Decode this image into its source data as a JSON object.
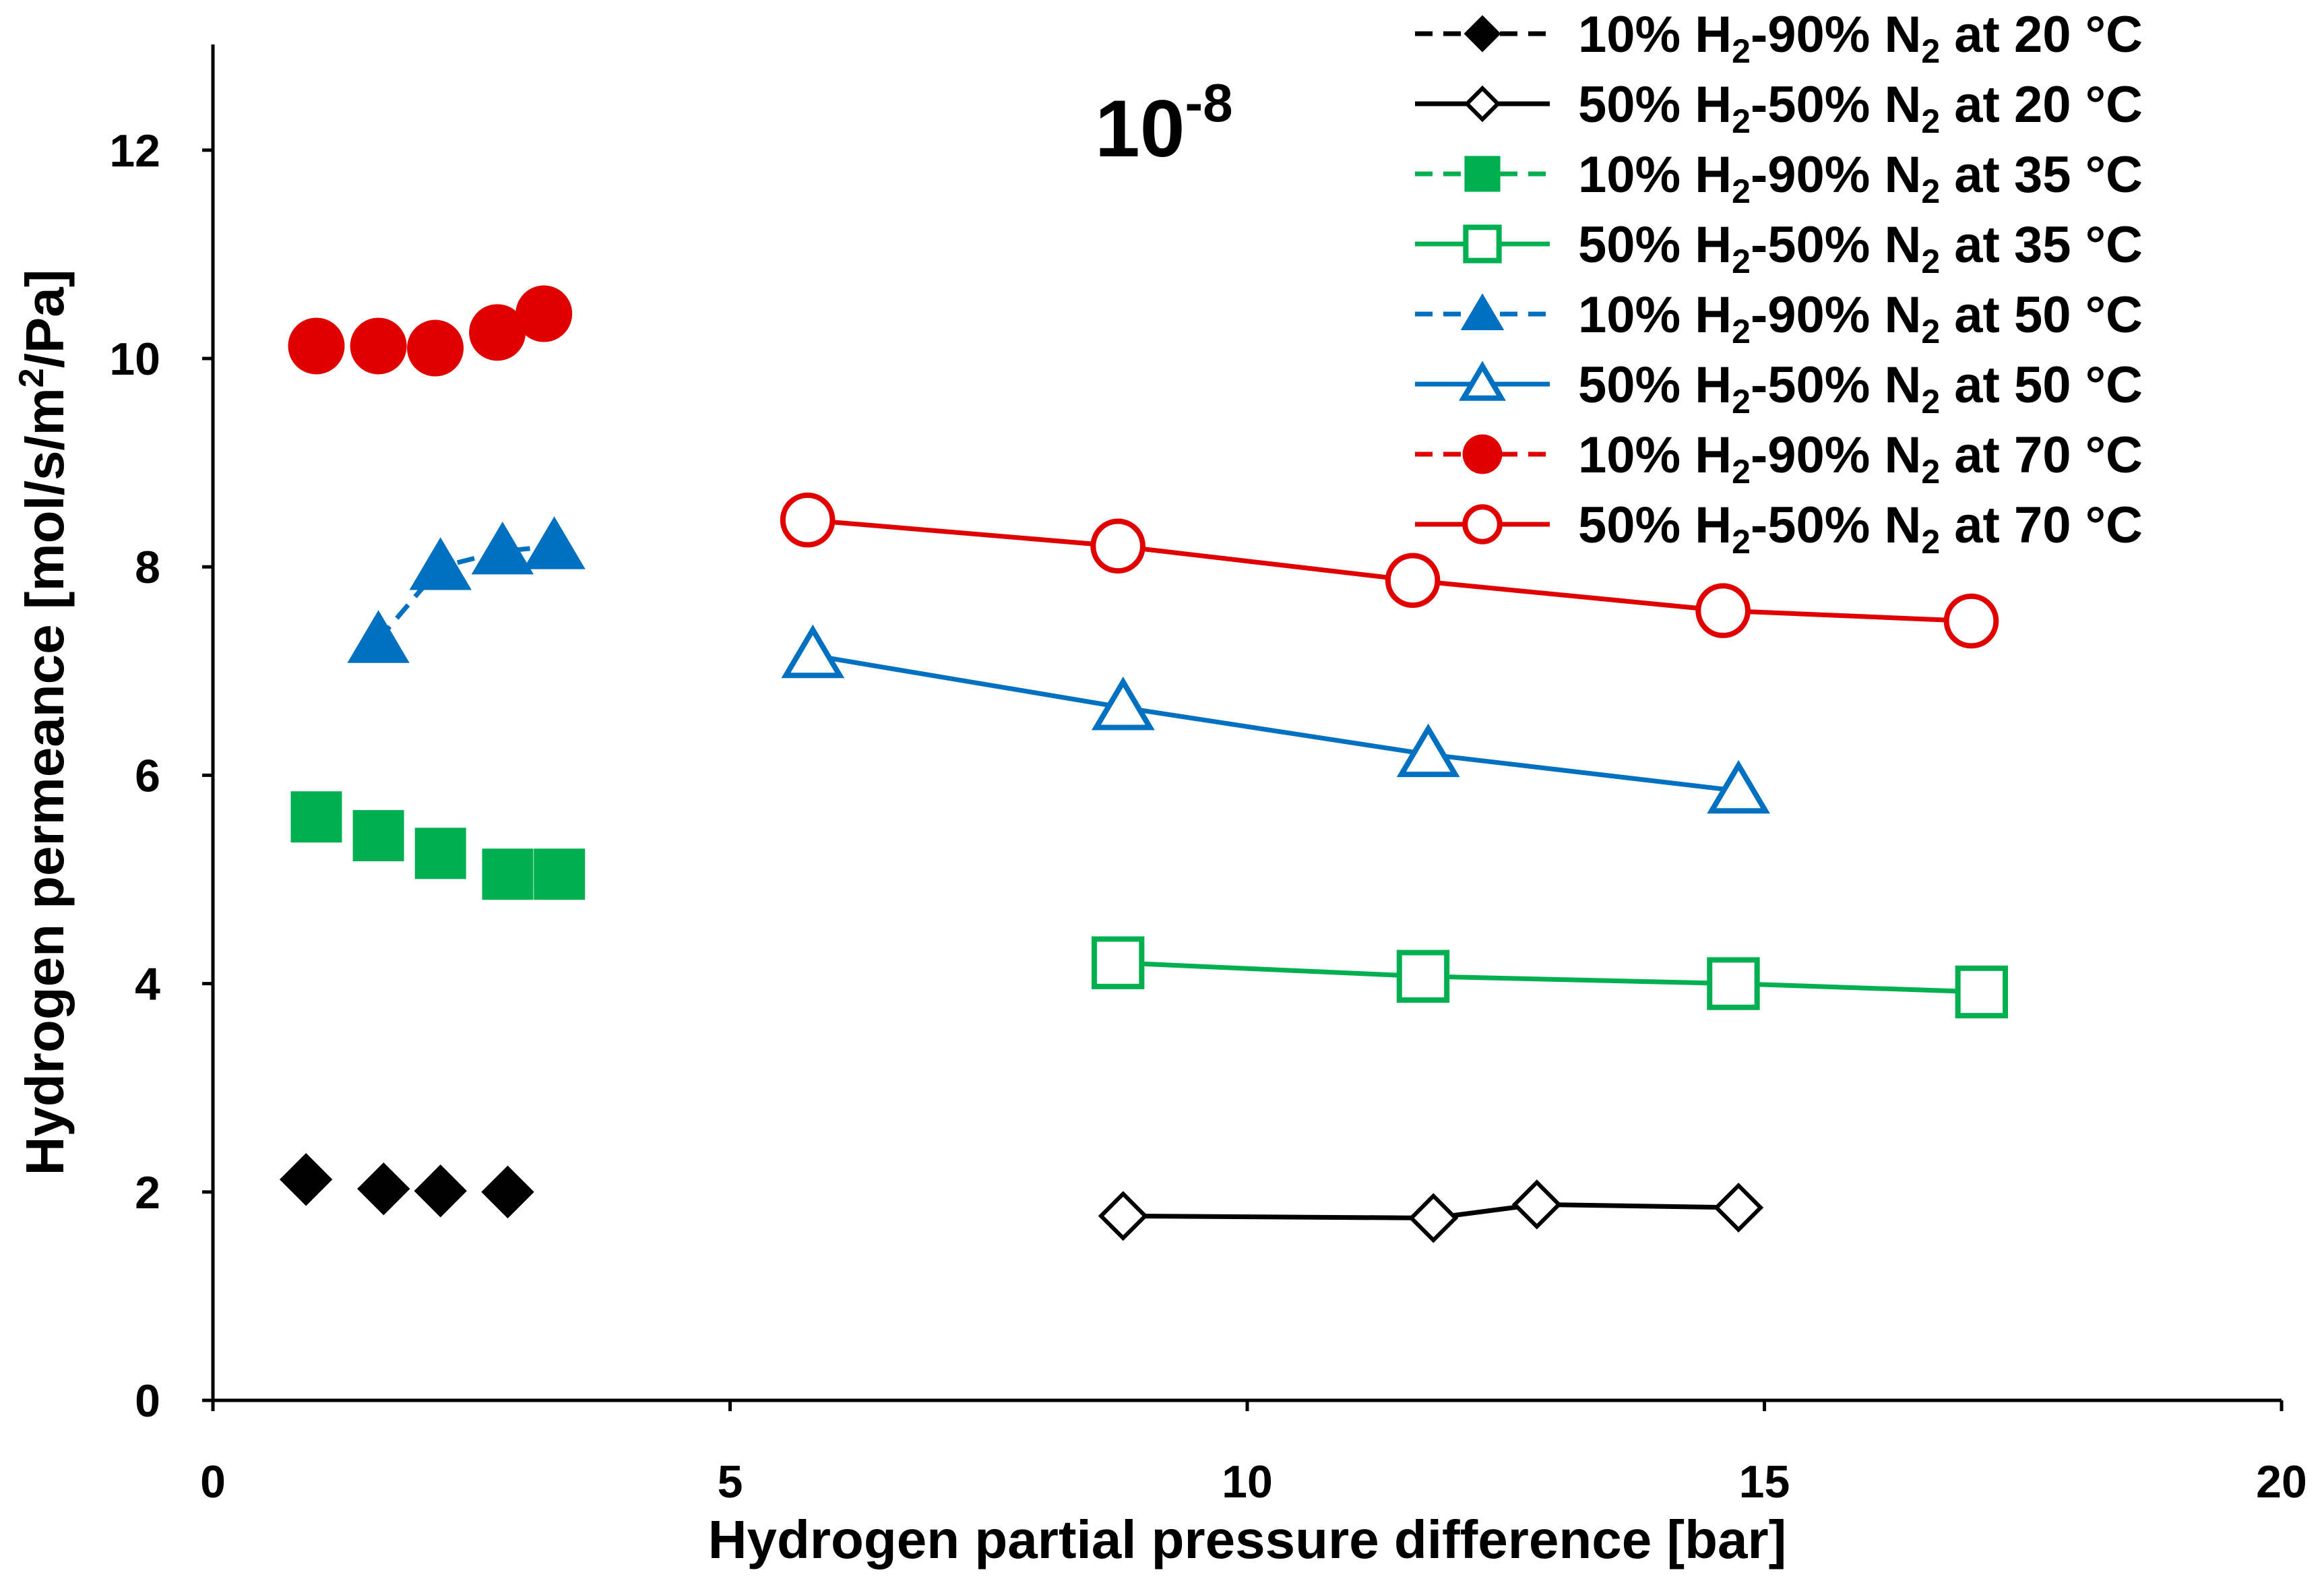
{
  "chart_data": {
    "type": "line",
    "title": "",
    "scale_note": {
      "base": "10",
      "exponent": "-8"
    },
    "xlabel": "Hydrogen partial pressure difference [bar]",
    "ylabel": "Hydrogen permeance [mol/s/m2/Pa]",
    "ylabel_parts": {
      "before": "Hydrogen permeance [mol/s/m",
      "sup": "2",
      "after": "/Pa]"
    },
    "xlim": [
      0,
      20
    ],
    "ylim": [
      0,
      13
    ],
    "xticks": [
      0,
      5,
      10,
      15,
      20
    ],
    "yticks": [
      0,
      2,
      4,
      6,
      8,
      10,
      12
    ],
    "grid": false,
    "legend_position": "top-right",
    "series": [
      {
        "name": "10% H2-90% N2 at 20 °C",
        "label_parts": {
          "a": "10% H",
          "b": "-90% N",
          "c": " at 20 °C"
        },
        "color": "#000000",
        "marker": "diamond",
        "filled": true,
        "dashed": true,
        "line_visible": false,
        "x": [
          0.9,
          1.65,
          2.2,
          2.85
        ],
        "y": [
          2.12,
          2.03,
          2.01,
          2.0
        ]
      },
      {
        "name": "50% H2-50% N2 at 20 °C",
        "label_parts": {
          "a": "50% H",
          "b": "-50% N",
          "c": " at 20 °C"
        },
        "color": "#000000",
        "marker": "diamond",
        "filled": false,
        "dashed": false,
        "line_visible": true,
        "x": [
          8.8,
          11.8,
          12.8,
          14.75
        ],
        "y": [
          1.77,
          1.75,
          1.88,
          1.85
        ]
      },
      {
        "name": "10% H2-90% N2 at 35 °C",
        "label_parts": {
          "a": "10% H",
          "b": "-90% N",
          "c": " at 35 °C"
        },
        "color": "#00b050",
        "marker": "square",
        "filled": true,
        "dashed": true,
        "line_visible": false,
        "x": [
          1.0,
          1.6,
          2.2,
          2.85,
          3.35
        ],
        "y": [
          5.6,
          5.42,
          5.25,
          5.05,
          5.05
        ]
      },
      {
        "name": "50% H2-50% N2 at 35 °C",
        "label_parts": {
          "a": "50% H",
          "b": "-50% N",
          "c": " at 35 °C"
        },
        "color": "#00b050",
        "marker": "square",
        "filled": false,
        "dashed": false,
        "line_visible": true,
        "x": [
          8.75,
          11.7,
          14.7,
          17.1
        ],
        "y": [
          4.2,
          4.07,
          4.0,
          3.92
        ]
      },
      {
        "name": "10% H2-90% N2 at 50 °C",
        "label_parts": {
          "a": "10% H",
          "b": "-90% N",
          "c": " at 50 °C"
        },
        "color": "#0070c0",
        "marker": "triangle",
        "filled": true,
        "dashed": true,
        "line_visible": true,
        "x": [
          1.6,
          2.2,
          2.8,
          3.3
        ],
        "y": [
          7.3,
          8.0,
          8.15,
          8.2
        ]
      },
      {
        "name": "50% H2-50% N2 at 50 °C",
        "label_parts": {
          "a": "50% H",
          "b": "-50% N",
          "c": " at 50 °C"
        },
        "color": "#0070c0",
        "marker": "triangle",
        "filled": false,
        "dashed": false,
        "line_visible": true,
        "x": [
          5.8,
          8.8,
          11.75,
          14.75
        ],
        "y": [
          7.15,
          6.65,
          6.2,
          5.85
        ]
      },
      {
        "name": "10% H2-90% N2 at 70 °C",
        "label_parts": {
          "a": "10% H",
          "b": "-90% N",
          "c": " at 70 °C"
        },
        "color": "#e00000",
        "marker": "circle",
        "filled": true,
        "dashed": true,
        "line_visible": false,
        "x": [
          1.0,
          1.6,
          2.15,
          2.75,
          3.2
        ],
        "y": [
          10.12,
          10.12,
          10.1,
          10.25,
          10.43
        ]
      },
      {
        "name": "50% H2-50% N2 at 70 °C",
        "label_parts": {
          "a": "50% H",
          "b": "-50% N",
          "c": " at 70 °C"
        },
        "color": "#e00000",
        "marker": "circle",
        "filled": false,
        "dashed": false,
        "line_visible": true,
        "x": [
          5.75,
          8.75,
          11.6,
          14.6,
          17.0
        ],
        "y": [
          8.45,
          8.2,
          7.87,
          7.58,
          7.48
        ]
      }
    ]
  }
}
